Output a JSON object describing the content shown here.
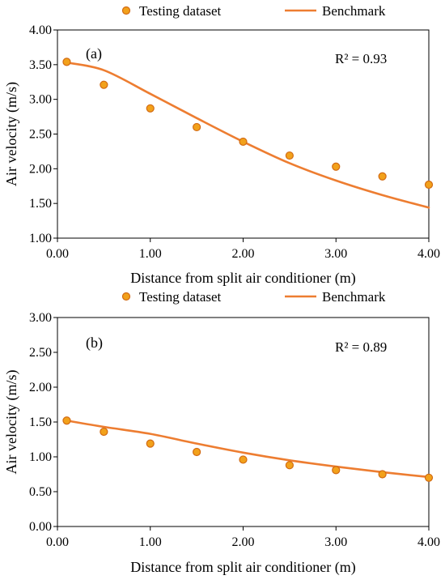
{
  "chart_data": [
    {
      "type": "scatter",
      "panel_label": "(a)",
      "annotation": "R² = 0.93",
      "legend": [
        "Testing dataset",
        "Benchmark"
      ],
      "xlabel": "Distance from split air conditioner (m)",
      "ylabel": "Air velocity (m/s)",
      "xlim": [
        0,
        4
      ],
      "ylim": [
        1,
        4
      ],
      "xticks": [
        "0.00",
        "1.00",
        "2.00",
        "3.00",
        "4.00"
      ],
      "yticks": [
        "1.00",
        "1.50",
        "2.00",
        "2.50",
        "3.00",
        "3.50",
        "4.00"
      ],
      "series": [
        {
          "name": "Testing dataset",
          "kind": "scatter",
          "x": [
            0.1,
            0.5,
            1.0,
            1.5,
            2.0,
            2.5,
            3.0,
            3.5,
            4.0
          ],
          "y": [
            3.54,
            3.21,
            2.87,
            2.6,
            2.39,
            2.19,
            2.03,
            1.89,
            1.77
          ]
        },
        {
          "name": "Benchmark",
          "kind": "line",
          "x": [
            0.1,
            0.5,
            1.0,
            1.5,
            2.0,
            2.5,
            3.0,
            3.5,
            4.0
          ],
          "y": [
            3.53,
            3.42,
            3.08,
            2.73,
            2.39,
            2.08,
            1.83,
            1.62,
            1.44
          ]
        }
      ],
      "colors": {
        "marker_fill": "#F2A11B",
        "marker_edge": "#D26A12",
        "line": "#ED7D31"
      }
    },
    {
      "type": "scatter",
      "panel_label": "(b)",
      "annotation": "R² = 0.89",
      "legend": [
        "Testing dataset",
        "Benchmark"
      ],
      "xlabel": "Distance from split air conditioner (m)",
      "ylabel": "Air velocity (m/s)",
      "xlim": [
        0,
        4
      ],
      "ylim": [
        0,
        3
      ],
      "xticks": [
        "0.00",
        "1.00",
        "2.00",
        "3.00",
        "4.00"
      ],
      "yticks": [
        "0.00",
        "0.50",
        "1.00",
        "1.50",
        "2.00",
        "2.50",
        "3.00"
      ],
      "series": [
        {
          "name": "Testing dataset",
          "kind": "scatter",
          "x": [
            0.1,
            0.5,
            1.0,
            1.5,
            2.0,
            2.5,
            3.0,
            3.5,
            4.0
          ],
          "y": [
            1.52,
            1.36,
            1.19,
            1.07,
            0.96,
            0.88,
            0.81,
            0.75,
            0.7
          ]
        },
        {
          "name": "Benchmark",
          "kind": "line",
          "x": [
            0.1,
            0.5,
            1.0,
            1.5,
            2.0,
            2.5,
            3.0,
            3.5,
            4.0
          ],
          "y": [
            1.52,
            1.43,
            1.33,
            1.19,
            1.06,
            0.95,
            0.86,
            0.78,
            0.71
          ]
        }
      ],
      "colors": {
        "marker_fill": "#F2A11B",
        "marker_edge": "#D26A12",
        "line": "#ED7D31"
      }
    }
  ]
}
